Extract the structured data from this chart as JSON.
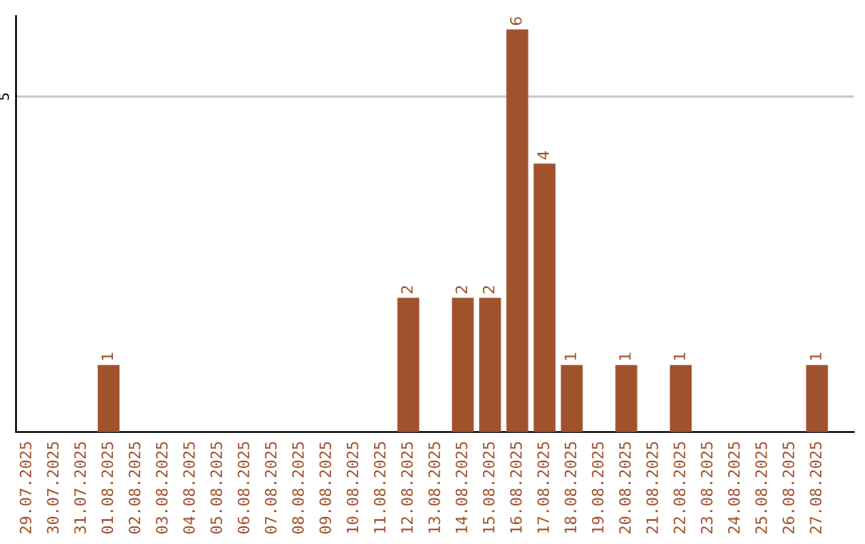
{
  "chart_data": {
    "type": "bar",
    "categories": [
      "29.07.2025",
      "30.07.2025",
      "31.07.2025",
      "01.08.2025",
      "02.08.2025",
      "03.08.2025",
      "04.08.2025",
      "05.08.2025",
      "06.08.2025",
      "07.08.2025",
      "08.08.2025",
      "09.08.2025",
      "10.08.2025",
      "11.08.2025",
      "12.08.2025",
      "13.08.2025",
      "14.08.2025",
      "15.08.2025",
      "16.08.2025",
      "17.08.2025",
      "18.08.2025",
      "19.08.2025",
      "20.08.2025",
      "21.08.2025",
      "22.08.2025",
      "23.08.2025",
      "24.08.2025",
      "25.08.2025",
      "26.08.2025",
      "27.08.2025"
    ],
    "values": [
      0,
      0,
      0,
      1,
      0,
      0,
      0,
      0,
      0,
      0,
      0,
      0,
      0,
      0,
      2,
      0,
      2,
      2,
      6,
      4,
      1,
      0,
      1,
      0,
      1,
      0,
      0,
      0,
      0,
      1
    ],
    "value_labels": [
      null,
      null,
      null,
      "1",
      null,
      null,
      null,
      null,
      null,
      null,
      null,
      null,
      null,
      null,
      "2",
      null,
      "2",
      "2",
      "6",
      "4",
      "1",
      null,
      "1",
      null,
      "1",
      null,
      null,
      null,
      null,
      "1"
    ],
    "color": "#a0522d",
    "ylim": [
      0,
      6.2
    ],
    "yticks": [
      5
    ],
    "grid": "y",
    "legend": false
  }
}
